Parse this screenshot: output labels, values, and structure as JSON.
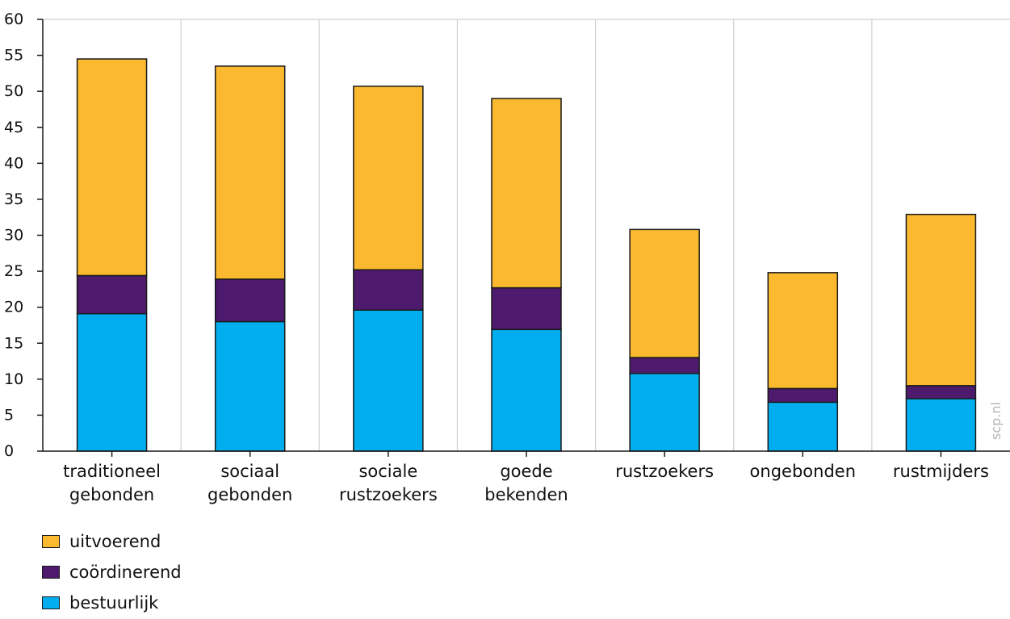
{
  "chart_data": {
    "type": "bar",
    "stacked": true,
    "categories": [
      [
        "traditioneel",
        "gebonden"
      ],
      [
        "sociaal",
        "gebonden"
      ],
      [
        "sociale",
        "rustzoekers"
      ],
      [
        "goede",
        "bekenden"
      ],
      [
        "rustzoekers"
      ],
      [
        "ongebonden"
      ],
      [
        "rustmijders"
      ]
    ],
    "series": [
      {
        "name": "bestuurlijk",
        "color": "#00aeef",
        "values": [
          19.1,
          18.0,
          19.6,
          16.9,
          10.8,
          6.8,
          7.3
        ]
      },
      {
        "name": "coördinerend",
        "color": "#4d1a6e",
        "values": [
          5.3,
          5.9,
          5.6,
          5.8,
          2.2,
          1.9,
          1.8
        ]
      },
      {
        "name": "uitvoerend",
        "color": "#fbb92f",
        "values": [
          30.1,
          29.6,
          25.5,
          26.3,
          17.8,
          16.1,
          23.8
        ]
      }
    ],
    "legend_order": [
      "uitvoerend",
      "coördinerend",
      "bestuurlijk"
    ],
    "ylim": [
      0,
      60
    ],
    "yticks": [
      0,
      5,
      10,
      15,
      20,
      25,
      30,
      35,
      40,
      45,
      50,
      55,
      60
    ],
    "xlabel": "",
    "ylabel": "",
    "grid": "vertical between categories",
    "legend_position": "bottom-left"
  },
  "legend": {
    "items": [
      {
        "label": "uitvoerend",
        "color": "#fbb92f"
      },
      {
        "label": "coördinerend",
        "color": "#4d1a6e"
      },
      {
        "label": "bestuurlijk",
        "color": "#00aeef"
      }
    ]
  },
  "watermark": {
    "text": "scp.nl"
  }
}
